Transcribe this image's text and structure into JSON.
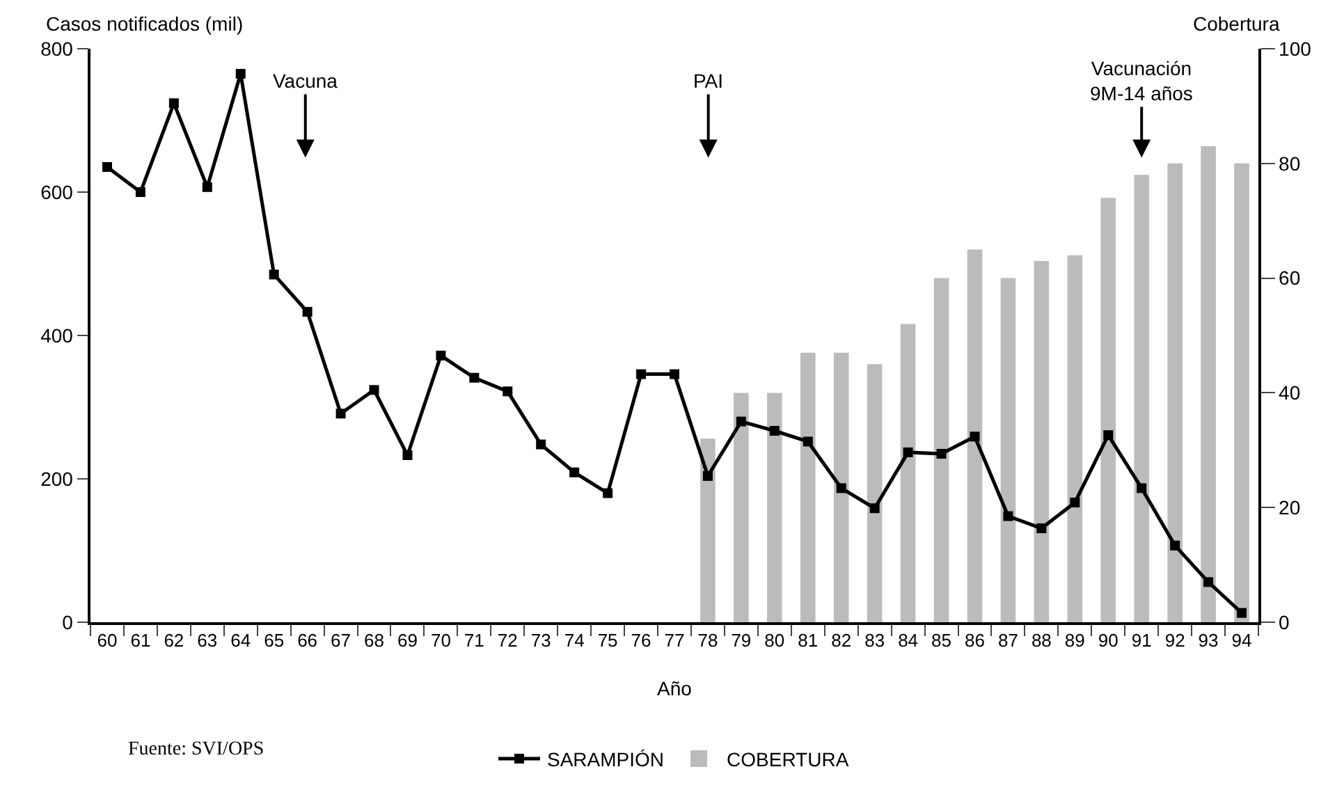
{
  "chart_data": {
    "type": "line",
    "xlabel": "Año",
    "ylabel": "Casos notificados (mil)",
    "y2label": "Cobertura",
    "categories": [
      "60",
      "61",
      "62",
      "63",
      "64",
      "65",
      "66",
      "67",
      "68",
      "69",
      "70",
      "71",
      "72",
      "73",
      "74",
      "75",
      "76",
      "77",
      "78",
      "79",
      "80",
      "81",
      "82",
      "83",
      "84",
      "85",
      "86",
      "87",
      "88",
      "89",
      "90",
      "91",
      "92",
      "93",
      "94"
    ],
    "series": [
      {
        "name": "SARAMPIÓN",
        "type": "line",
        "color": "#000000",
        "values": [
          635,
          600,
          724,
          607,
          765,
          485,
          433,
          291,
          324,
          233,
          372,
          341,
          322,
          248,
          209,
          180,
          346,
          346,
          204,
          280,
          267,
          252,
          187,
          159,
          237,
          235,
          259,
          148,
          131,
          167,
          261,
          187,
          107,
          56,
          13
        ]
      },
      {
        "name": "COBERTURA",
        "type": "bar",
        "axis": "y2",
        "color": "#bbbbbb",
        "values": [
          null,
          null,
          null,
          null,
          null,
          null,
          null,
          null,
          null,
          null,
          null,
          null,
          null,
          null,
          null,
          null,
          null,
          null,
          32,
          40,
          40,
          47,
          47,
          45,
          52,
          60,
          65,
          60,
          63,
          64,
          74,
          78,
          80,
          83,
          80
        ]
      }
    ],
    "ylim": [
      0,
      800
    ],
    "yticks": [
      0,
      200,
      400,
      600,
      800
    ],
    "y2lim": [
      0,
      100
    ],
    "y2ticks": [
      0,
      20,
      40,
      60,
      80,
      100
    ],
    "marker": "square",
    "grid": false,
    "legend": "bottom",
    "annotations": [
      "Vacuna",
      "PAI",
      "Vacunación\n9M-14 años",
      "Fuente: SVI/OPS"
    ]
  }
}
